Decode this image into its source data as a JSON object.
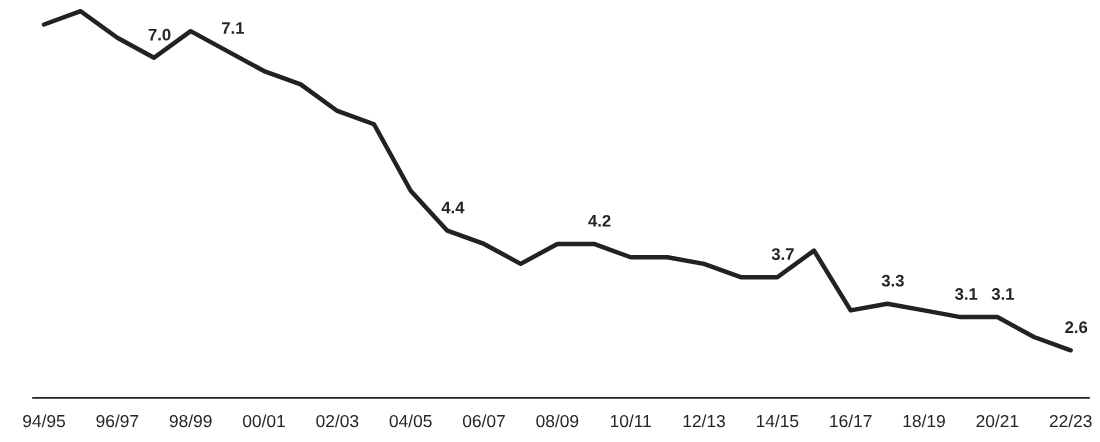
{
  "chart_data": {
    "type": "line",
    "categories": [
      "94/95",
      null,
      "96/97",
      null,
      "98/99",
      null,
      "00/01",
      null,
      "02/03",
      null,
      "04/05",
      null,
      "06/07",
      null,
      "08/09",
      null,
      "10/11",
      null,
      "12/13",
      null,
      "14/15",
      null,
      "16/17",
      null,
      "18/19",
      null,
      "20/21",
      null,
      "22/23"
    ],
    "series": [
      {
        "color": "#222222",
        "values": [
          7.5,
          7.7,
          7.3,
          7.0,
          7.4,
          7.1,
          6.8,
          6.6,
          6.2,
          6.0,
          5.0,
          4.4,
          4.2,
          3.9,
          4.2,
          4.2,
          4.0,
          4.0,
          3.9,
          3.7,
          3.7,
          4.1,
          3.2,
          3.3,
          3.2,
          3.1,
          3.1,
          2.8,
          2.6
        ],
        "value_labels": [
          null,
          null,
          null,
          "7.0",
          null,
          "7.1",
          null,
          null,
          null,
          null,
          null,
          "4.4",
          null,
          null,
          null,
          "4.2",
          null,
          null,
          null,
          null,
          "3.7",
          null,
          null,
          "3.3",
          null,
          "3.1",
          "3.1",
          null,
          "2.6"
        ]
      }
    ],
    "marker": "none",
    "line_style": "solid",
    "tick_labels": "x"
  }
}
